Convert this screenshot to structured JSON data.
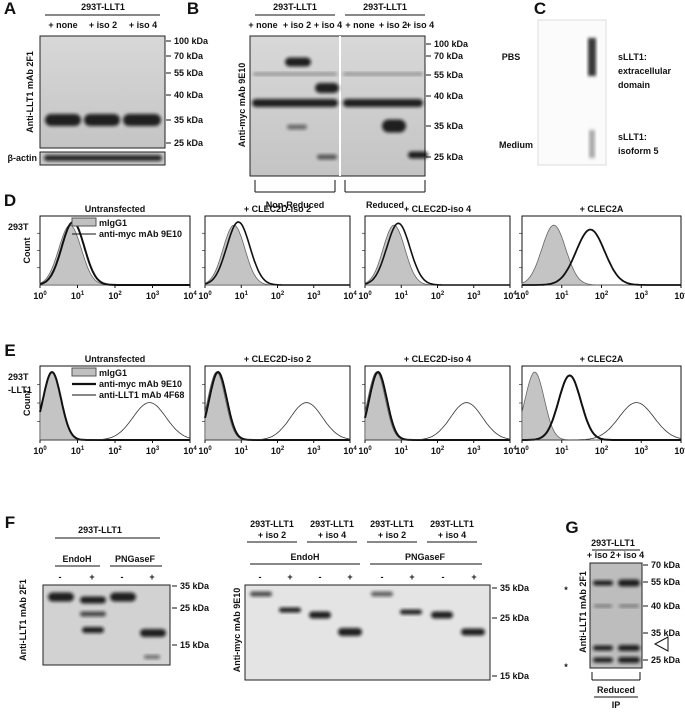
{
  "panel_a": {
    "letter": "A",
    "cell_line": "293T-LLT1",
    "lanes": [
      "+ none",
      "+ iso 2",
      "+ iso 4"
    ],
    "y_label": "Anti-LLT1 mAb 2F1",
    "loading_control": "β-actin",
    "markers": [
      "100 kDa",
      "70 kDa",
      "55 kDa",
      "40 kDa",
      "35 kDa",
      "25 kDa"
    ]
  },
  "panel_b": {
    "letter": "B",
    "groups": [
      {
        "cell_line": "293T-LLT1",
        "lanes": [
          "+ none",
          "+ iso 2",
          "+ iso 4"
        ],
        "condition": "Non-Reduced"
      },
      {
        "cell_line": "293T-LLT1",
        "lanes": [
          "+ none",
          "+ iso 2",
          "+ iso 4"
        ],
        "condition": "Reduced"
      }
    ],
    "y_label": "Anti-myc mAb 9E10",
    "markers": [
      "100 kDa",
      "70 kDa",
      "55 kDa",
      "40 kDa",
      "35 kDa",
      "25 kDa"
    ]
  },
  "panel_c": {
    "letter": "C",
    "rows": [
      "PBS",
      "Medium"
    ],
    "labels": [
      [
        "sLLT1:",
        "extracellular",
        "domain"
      ],
      [
        "sLLT1:",
        "isoform 5"
      ]
    ]
  },
  "flow_axis": {
    "y_label": "Count",
    "tick_base": "10",
    "tick_exponents": [
      "0",
      "1",
      "2",
      "3",
      "4"
    ]
  },
  "panel_d": {
    "letter": "D",
    "cell_line": [
      "293T"
    ],
    "titles": [
      "Untransfected",
      "+ CLEC2D-iso 2",
      "+ CLEC2D-iso 4",
      "+ CLEC2A"
    ],
    "legend": [
      "mIgG1",
      "anti-myc mAb 9E10"
    ]
  },
  "panel_e": {
    "letter": "E",
    "cell_line": [
      "293T",
      "-LLT1"
    ],
    "titles": [
      "Untransfected",
      "+ CLEC2D-iso 2",
      "+ CLEC2D-iso 4",
      "+ CLEC2A"
    ],
    "legend": [
      "mIgG1",
      "anti-myc mAb 9E10",
      "anti-LLT1 mAb 4F68"
    ]
  },
  "panel_f": {
    "letter": "F",
    "left": {
      "cell_line": "293T-LLT1",
      "enzymes": [
        "EndoH",
        "PNGaseF"
      ],
      "lanes": [
        "-",
        "+",
        "-",
        "+"
      ],
      "y_label": "Anti-LLT1 mAb 2F1",
      "markers": [
        "35 kDa",
        "25 kDa",
        "15 kDa"
      ]
    },
    "right": {
      "cell_lines": [
        [
          "293T-LLT1",
          "+ iso 2"
        ],
        [
          "293T-LLT1",
          "+ iso 4"
        ],
        [
          "293T-LLT1",
          "+ iso 2"
        ],
        [
          "293T-LLT1",
          "+ iso 4"
        ]
      ],
      "enzymes": [
        "EndoH",
        "PNGaseF"
      ],
      "lanes": [
        "-",
        "+",
        "-",
        "+",
        "-",
        "+",
        "-",
        "+"
      ],
      "y_label": "Anti-myc mAb 9E10",
      "markers": [
        "35 kDa",
        "25 kDa",
        "15 kDa"
      ]
    }
  },
  "panel_g": {
    "letter": "G",
    "cell_line": "293T-LLT1",
    "lanes": [
      "+ iso 2",
      "+ iso 4"
    ],
    "y_label": "Anti-LLT1 mAb 2F1",
    "markers": [
      "70 kDa",
      "55 kDa",
      "40 kDa",
      "35 kDa",
      "25 kDa"
    ],
    "asterisks": [
      "*",
      "*"
    ],
    "condition": "Reduced",
    "method": "IP"
  }
}
